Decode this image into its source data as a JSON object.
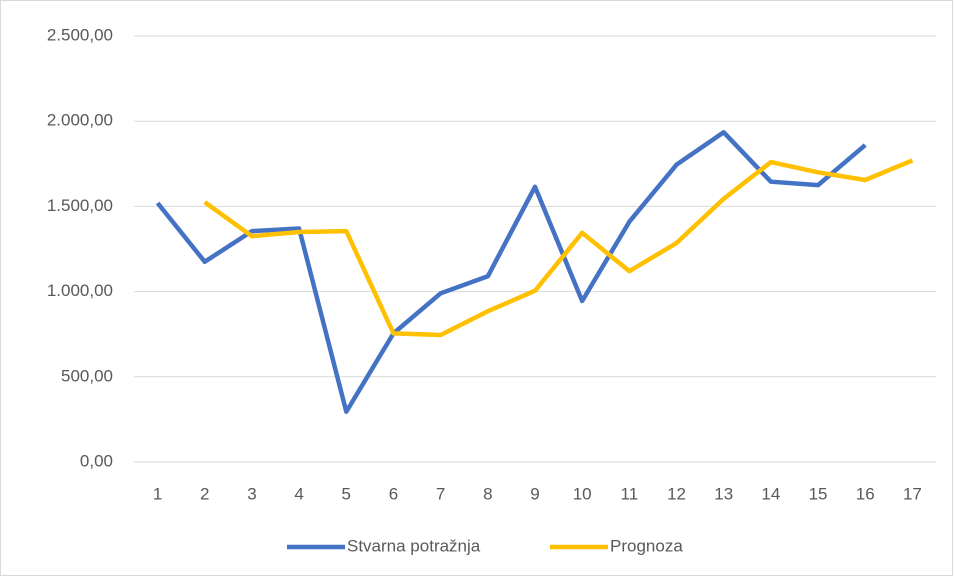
{
  "chart_data": {
    "type": "line",
    "categories": [
      "1",
      "2",
      "3",
      "4",
      "5",
      "6",
      "7",
      "8",
      "9",
      "10",
      "11",
      "12",
      "13",
      "14",
      "15",
      "16",
      "17"
    ],
    "series": [
      {
        "name": "Stvarna potražnja",
        "color": "#4472c4",
        "values": [
          1520,
          1175,
          1355,
          1370,
          295,
          755,
          990,
          1090,
          1615,
          945,
          1410,
          1745,
          1935,
          1645,
          1625,
          1860,
          null
        ]
      },
      {
        "name": "Prognoza",
        "color": "#ffc000",
        "values": [
          null,
          1525,
          1325,
          1350,
          1355,
          755,
          745,
          885,
          1005,
          1345,
          1120,
          1285,
          1545,
          1760,
          1700,
          1655,
          1770
        ]
      }
    ],
    "ylim": [
      0,
      2500
    ],
    "yticks": [
      {
        "value": 0,
        "label": "0,00"
      },
      {
        "value": 500,
        "label": "500,00"
      },
      {
        "value": 1000,
        "label": "1.000,00"
      },
      {
        "value": 1500,
        "label": "1.500,00"
      },
      {
        "value": 2000,
        "label": "2.000,00"
      },
      {
        "value": 2500,
        "label": "2.500,00"
      }
    ],
    "grid": true,
    "legend": "bottom"
  }
}
